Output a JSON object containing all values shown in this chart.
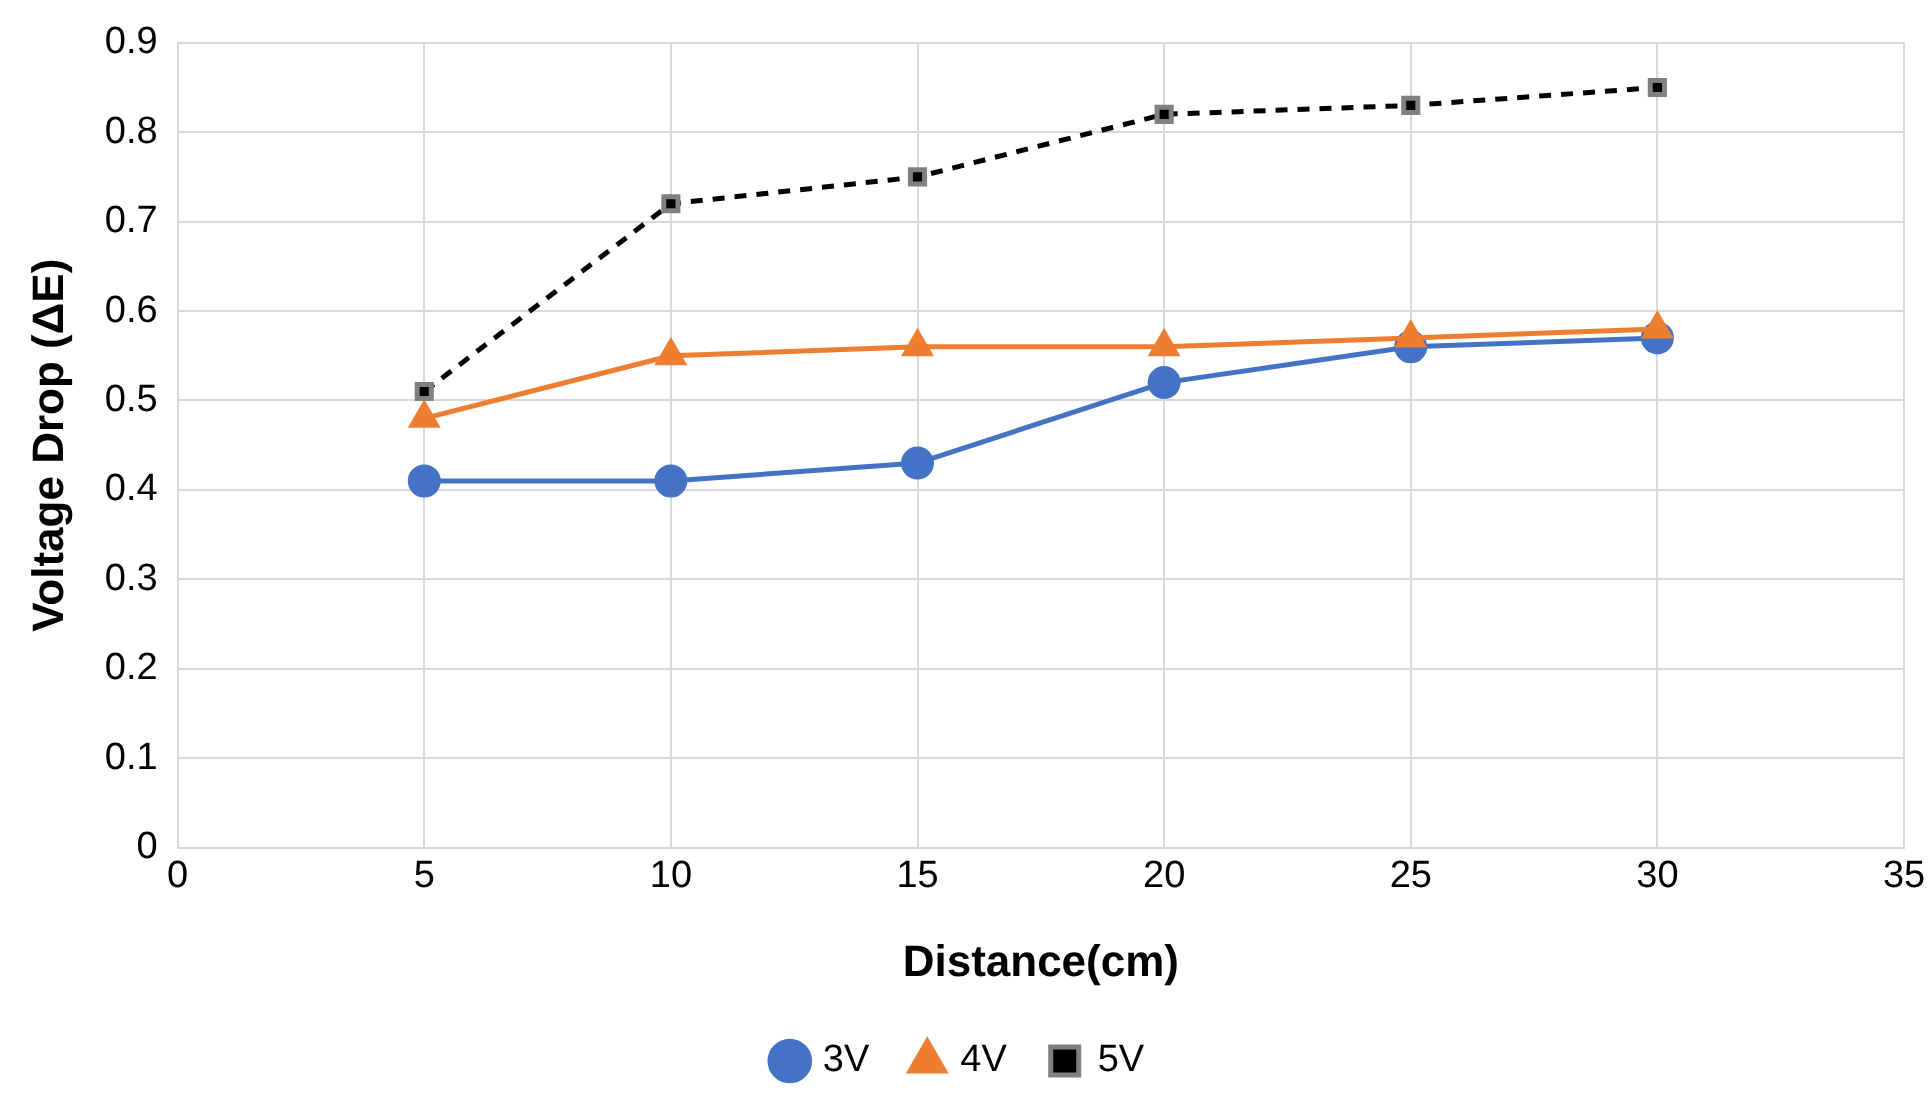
{
  "chart_data": {
    "type": "line",
    "xlabel": "Distance(cm)",
    "ylabel": "Voltage Drop (ΔE)",
    "x": [
      5,
      10,
      15,
      20,
      25,
      30
    ],
    "series": [
      {
        "name": "3V",
        "color": "#4472c4",
        "values": [
          0.41,
          0.41,
          0.43,
          0.52,
          0.56,
          0.57
        ],
        "marker": "circle",
        "line_style": "solid"
      },
      {
        "name": "4V",
        "color": "#ed7d31",
        "values": [
          0.48,
          0.55,
          0.56,
          0.56,
          0.57,
          0.58
        ],
        "marker": "triangle",
        "line_style": "solid"
      },
      {
        "name": "5V",
        "color": "#000000",
        "values": [
          0.51,
          0.72,
          0.75,
          0.82,
          0.83,
          0.85
        ],
        "marker": "square",
        "line_style": "dashed"
      }
    ],
    "xlim": [
      0,
      35
    ],
    "xticks": [
      0,
      5,
      10,
      15,
      20,
      25,
      30,
      35
    ],
    "ylim": [
      0,
      0.9
    ],
    "yticks": [
      0,
      0.1,
      0.2,
      0.3,
      0.4,
      0.5,
      0.6,
      0.7,
      0.8,
      0.9
    ],
    "grid": true,
    "legend": "bottom"
  }
}
